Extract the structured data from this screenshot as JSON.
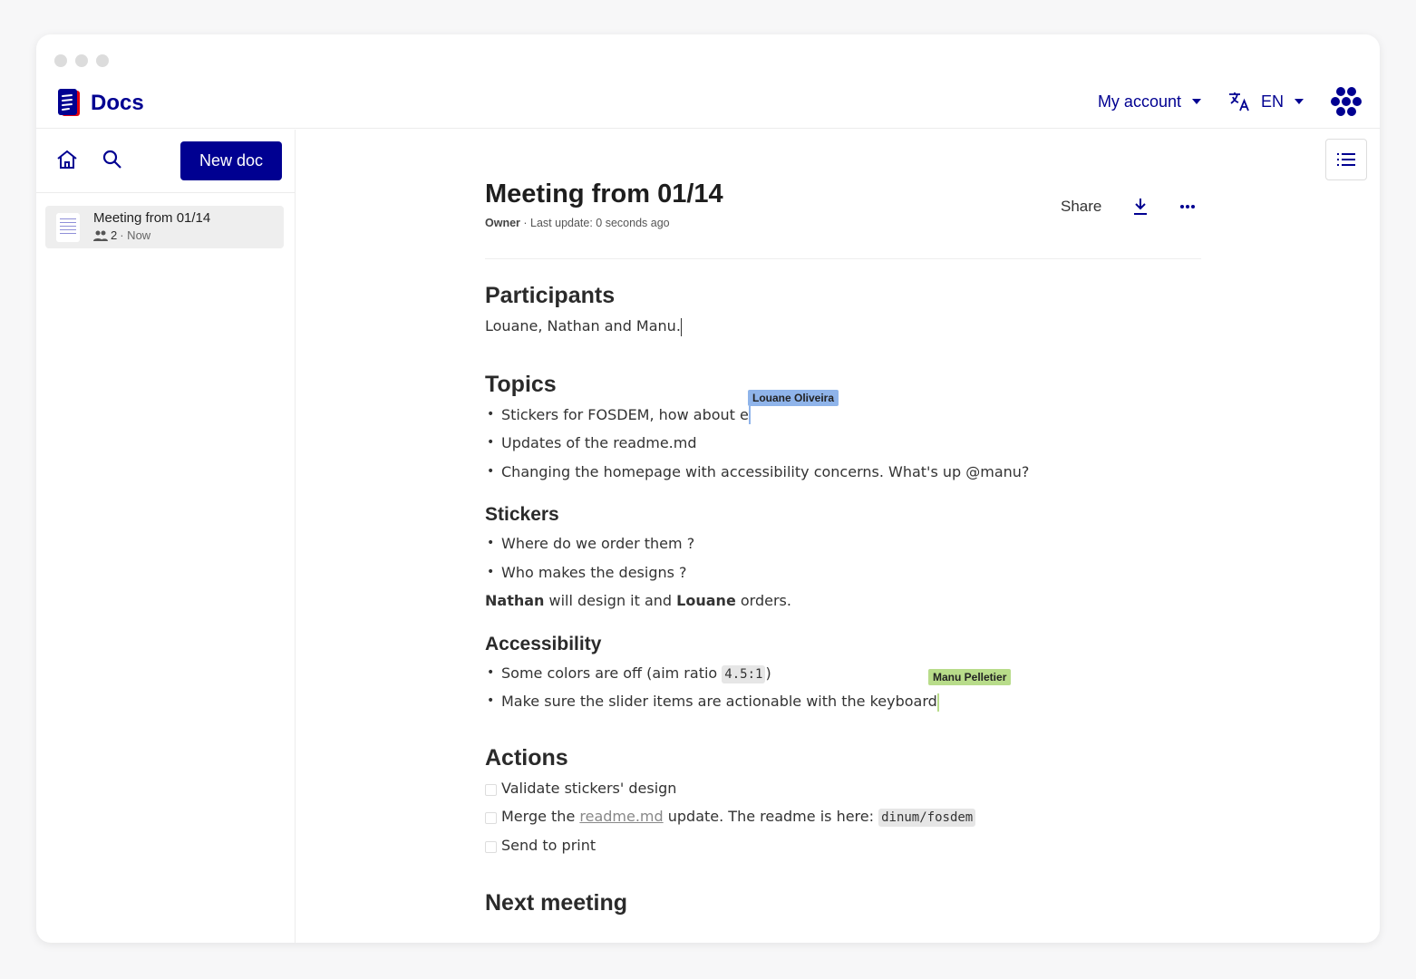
{
  "app": {
    "name": "Docs"
  },
  "header": {
    "account_label": "My account",
    "language_label": "EN"
  },
  "sidebar": {
    "new_doc_label": "New doc",
    "docs": [
      {
        "title": "Meeting from 01/14",
        "participants": "2",
        "updated": "· Now"
      }
    ]
  },
  "document": {
    "title": "Meeting from 01/14",
    "role": "Owner",
    "last_update": " · Last update: 0 seconds ago",
    "share_label": "Share",
    "sections": {
      "participants": {
        "heading": "Participants",
        "text": "Louane, Nathan and Manu."
      },
      "topics": {
        "heading": "Topics",
        "items": [
          "Stickers for FOSDEM, how about e",
          "Updates of the readme.md",
          "Changing the homepage with accessibility concerns. What's up @manu?"
        ]
      },
      "stickers": {
        "heading": "Stickers",
        "items": [
          "Where do we order them ?",
          "Who makes the designs ?"
        ],
        "summary": {
          "name1": "Nathan",
          "mid": " will design it and ",
          "name2": "Louane",
          "end": " orders."
        }
      },
      "accessibility": {
        "heading": "Accessibility",
        "item1_text": "Some colors are off (aim ratio ",
        "item1_code": "4.5:1",
        "item1_end": ")",
        "item2": "Make sure the slider items are actionable with the keyboard"
      },
      "actions": {
        "heading": "Actions",
        "items": [
          {
            "text": "Validate stickers' design",
            "checked": false
          },
          {
            "pre": "Merge the ",
            "link": "readme.md",
            "mid": " update. The readme is here: ",
            "code": "dinum/fosdem",
            "checked": false
          },
          {
            "text": "Send to print",
            "checked": false
          }
        ]
      },
      "next": {
        "heading": "Next meeting"
      }
    }
  },
  "collaborators": [
    {
      "name": "Louane Oliveira",
      "color": "#8fb4ea"
    },
    {
      "name": "Manu Pelletier",
      "color": "#b8dc8a"
    }
  ],
  "colors": {
    "brand": "#000091"
  }
}
